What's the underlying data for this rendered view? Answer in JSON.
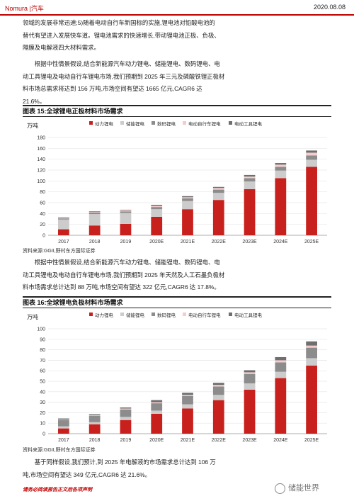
{
  "header": {
    "brand": "Nomura |汽车",
    "date": "2020.08.08"
  },
  "top_paragraph": {
    "lines": [
      "领域的发展非常迅速;5)随着电动自行车新国标的实施,锂电池对铅酸电池的",
      "替代有望进入发展快车道。锂电池需求的快速增长,带动锂电池正极、负极、",
      "隔膜及电解液四大材料需求。"
    ]
  },
  "paragraph2": {
    "lines": [
      "根据中性情景假设,结合新能源汽车动力锂电、储能锂电、数码锂电、电",
      "动工具锂电及电动自行车锂电市场,我们预期到 2025 年三元及磷酸铁锂正极材",
      "料市场总需求将达到 156 万吨,市场空间有望达 1665 亿元,CAGR6 达",
      "21.6%。"
    ]
  },
  "figure15": {
    "title": "图表 15:全球锂电正极材料市场需求",
    "source": "资料来源:GGII,野村东方国际证券"
  },
  "paragraph3": {
    "lines": [
      "根据中性情景假设,结合新能源汽车动力锂电、储能锂电、数码锂电、电",
      "动工具锂电及电动自行车锂电市场,我们预期到 2025 年天然及人工石墨负极材",
      "料市场需求总计达到 88 万吨,市场空间有望达 322 亿元,CAGR6 达 17.8%。"
    ]
  },
  "figure16": {
    "title": "图表 16:全球锂电负极材料市场需求",
    "source": "资料来源:GGII,野村东方国际证券"
  },
  "paragraph4": {
    "lines": [
      "基于同样假设,我们预计,到 2025 年电解液的市场需求总计达到 106 万",
      "吨,市场空间有望达 349 亿元,CAGR6 达 21.6%。"
    ]
  },
  "footer": {
    "note": "请务必阅读报告正文后各项声明",
    "watermark": "储能世界"
  },
  "chart_data": [
    {
      "type": "bar",
      "stacked": true,
      "ylabel": "万吨",
      "ylim": [
        0,
        180
      ],
      "yticks": [
        0,
        20,
        40,
        60,
        80,
        100,
        120,
        140,
        160,
        180
      ],
      "legend_position": "top",
      "categories": [
        "2017",
        "2018",
        "2019",
        "2020E",
        "2021E",
        "2022E",
        "2023E",
        "2024E",
        "2025E"
      ],
      "series": [
        {
          "name": "动力锂电",
          "color": "#c8201d",
          "values": [
            11,
            18,
            21,
            34,
            48,
            65,
            85,
            105,
            126
          ]
        },
        {
          "name": "储能锂电",
          "color": "#cccccc",
          "values": [
            18,
            21,
            20,
            14,
            15,
            13,
            14,
            14,
            13
          ]
        },
        {
          "name": "数码锂电",
          "color": "#8c8c8c",
          "values": [
            2,
            3,
            3,
            4,
            5,
            6,
            6,
            7,
            8
          ]
        },
        {
          "name": "电动自行车锂电",
          "color": "#f4cccc",
          "values": [
            1,
            1,
            2,
            2,
            2,
            3,
            3,
            4,
            5
          ]
        },
        {
          "name": "电动工具锂电",
          "color": "#6f6f6f",
          "values": [
            1,
            1,
            1,
            2,
            2,
            2,
            3,
            3,
            4
          ]
        }
      ]
    },
    {
      "type": "bar",
      "stacked": true,
      "ylabel": "万吨",
      "ylim": [
        0,
        100
      ],
      "yticks": [
        0,
        10,
        20,
        30,
        40,
        50,
        60,
        70,
        80,
        90,
        100
      ],
      "legend_position": "top",
      "categories": [
        "2017",
        "2018",
        "2019",
        "2020E",
        "2021E",
        "2022E",
        "2023E",
        "2024E",
        "2025E"
      ],
      "series": [
        {
          "name": "动力锂电",
          "color": "#c8201d",
          "values": [
            5,
            9,
            13,
            19,
            24,
            32,
            42,
            53,
            65
          ]
        },
        {
          "name": "储能锂电",
          "color": "#cccccc",
          "values": [
            2,
            2,
            3,
            3,
            4,
            5,
            6,
            6,
            7
          ]
        },
        {
          "name": "数码锂电",
          "color": "#8c8c8c",
          "values": [
            6,
            6,
            7,
            7,
            8,
            8,
            9,
            9,
            10
          ]
        },
        {
          "name": "电动自行车锂电",
          "color": "#f4cccc",
          "values": [
            0.5,
            0.5,
            1,
            1,
            1,
            1.5,
            1.5,
            2,
            2
          ]
        },
        {
          "name": "电动工具锂电",
          "color": "#6f6f6f",
          "values": [
            1,
            1,
            1,
            2,
            2,
            2,
            2,
            3,
            4
          ]
        }
      ]
    }
  ]
}
